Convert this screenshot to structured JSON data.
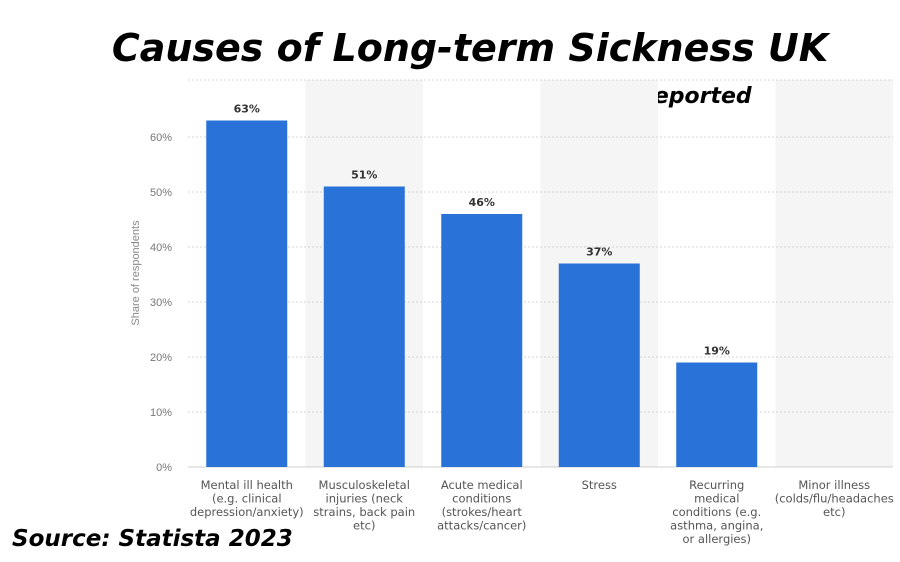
{
  "title": "Causes of Long-term Sickness UK",
  "subtitle": "Reported",
  "source": "Source: Statista 2023",
  "chart_data": {
    "type": "bar",
    "ylabel": "Share of respondents",
    "ylim": [
      0,
      60
    ],
    "yticks": [
      "0%",
      "10%",
      "20%",
      "30%",
      "40%",
      "50%",
      "60%"
    ],
    "grid": true,
    "color": "#2872d8",
    "categories": [
      [
        "Mental ill health",
        "(e.g. clinical",
        "depression/anxiety)"
      ],
      [
        "Musculoskeletal",
        "injuries (neck",
        "strains, back pain",
        "etc)"
      ],
      [
        "Acute medical",
        "conditions",
        "(strokes/heart",
        "attacks/cancer)"
      ],
      [
        "Stress"
      ],
      [
        "Recurring",
        "medical",
        "conditions (e.g.",
        "asthma, angina,",
        "or allergies)"
      ],
      [
        "Minor illness",
        "(colds/flu/headaches",
        "etc)"
      ]
    ],
    "values": [
      63,
      51,
      46,
      37,
      19,
      null
    ],
    "labels": [
      "63%",
      "51%",
      "46%",
      "37%",
      "19%",
      ""
    ]
  }
}
